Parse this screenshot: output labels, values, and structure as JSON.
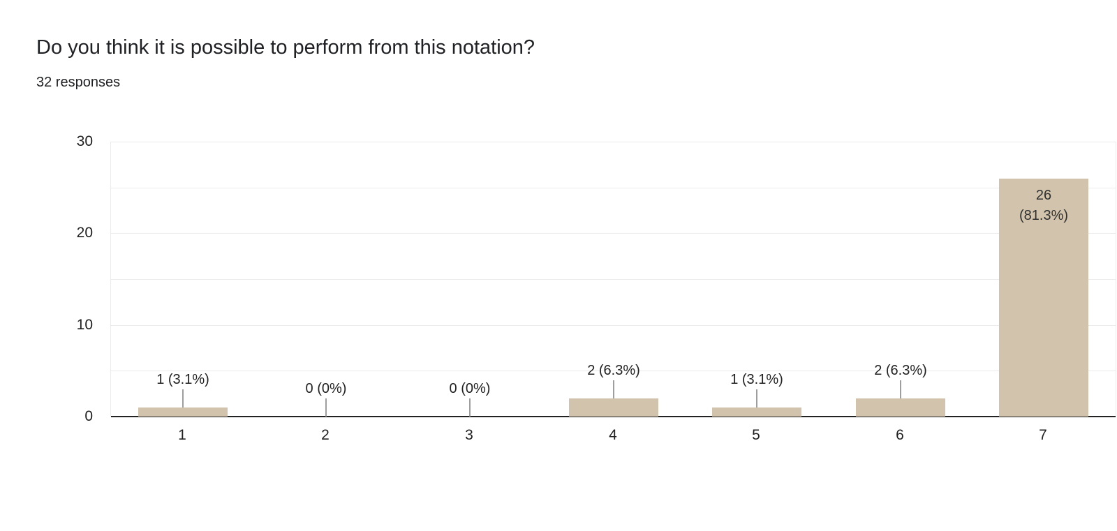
{
  "header": {
    "title": "Do you think it is possible to perform from this notation?",
    "subtitle": "32 responses"
  },
  "chart_data": {
    "type": "bar",
    "title": "Do you think it is possible to perform from this notation?",
    "subtitle": "32 responses",
    "total_responses": 32,
    "categories": [
      "1",
      "2",
      "3",
      "4",
      "5",
      "6",
      "7"
    ],
    "values": [
      1,
      0,
      0,
      2,
      1,
      2,
      26
    ],
    "labels": [
      "1 (3.1%)",
      "0 (0%)",
      "0 (0%)",
      "2 (6.3%)",
      "1 (3.1%)",
      "2 (6.3%)",
      "26 (81.3%)"
    ],
    "label_placement": [
      "outside",
      "outside",
      "outside",
      "outside",
      "outside",
      "outside",
      "inside"
    ],
    "inside_label_lines": {
      "6": [
        "26",
        "(81.3%)"
      ]
    },
    "xlabel": "",
    "ylabel": "",
    "ylim": [
      0,
      30
    ],
    "yticks": [
      0,
      10,
      20,
      30
    ],
    "gridline_step": 5,
    "grid": true,
    "legend": "none"
  },
  "style": {
    "background": "#ffffff",
    "bar_color": "#d2c4ac",
    "text_color": "#212121",
    "tick_color": "#1f1f1f",
    "inside_label_color": "#2f2f2f",
    "gridline_color": "#ececec",
    "axis_color": "#222222",
    "connector_color": "#9e9e9e"
  }
}
